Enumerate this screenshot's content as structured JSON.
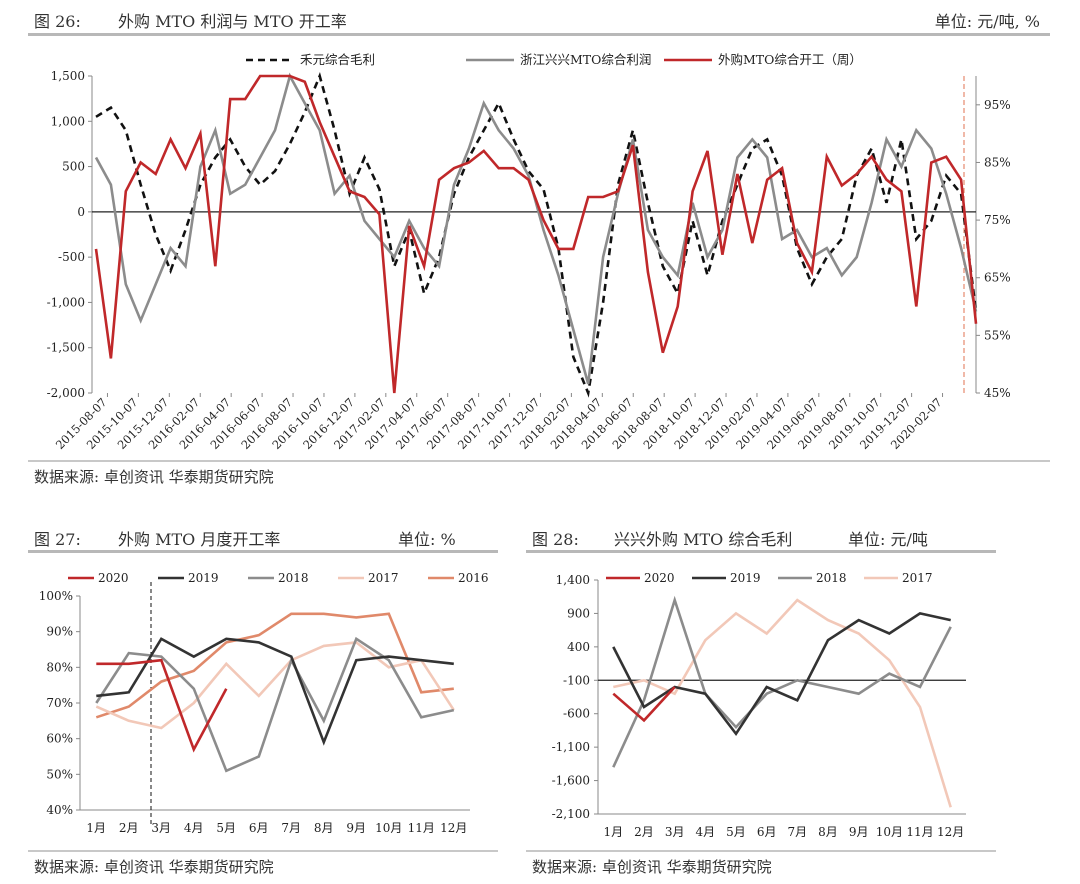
{
  "fig26": {
    "title_num": "图 26:",
    "title": "外购 MTO 利润与 MTO 开工率",
    "unit": "单位: 元/吨, %",
    "source": "数据来源: 卓创资讯 华泰期货研究院"
  },
  "fig27": {
    "title_num": "图 27:",
    "title": "外购 MTO 月度开工率",
    "unit": "单位: %",
    "source": "数据来源: 卓创资讯 华泰期货研究院"
  },
  "fig28": {
    "title_num": "图 28:",
    "title": "兴兴外购 MTO 综合毛利",
    "unit": "单位: 元/吨",
    "source": "数据来源: 卓创资讯 华泰期货研究院"
  },
  "chart_data": [
    {
      "id": "fig26",
      "type": "line",
      "legend": [
        "禾元综合毛利",
        "浙江兴兴MTO综合利润",
        "外购MTO综合开工（周）"
      ],
      "legend_position": "top",
      "y_left": {
        "min": -2000,
        "max": 1500,
        "ticks": [
          "1,500",
          "1,000",
          "500",
          "0",
          "-500",
          "-1,000",
          "-1,500",
          "-2,000"
        ]
      },
      "y_right": {
        "min": 45,
        "max": 100,
        "ticks": [
          "95%",
          "85%",
          "75%",
          "65%",
          "55%",
          "45%"
        ]
      },
      "x_ticks": [
        "2015-08-07",
        "2015-10-07",
        "2015-12-07",
        "2016-02-07",
        "2016-04-07",
        "2016-06-07",
        "2016-08-07",
        "2016-10-07",
        "2016-12-07",
        "2017-02-07",
        "2017-04-07",
        "2017-06-07",
        "2017-08-07",
        "2017-10-07",
        "2017-12-07",
        "2018-02-07",
        "2018-04-07",
        "2018-06-07",
        "2018-08-07",
        "2018-10-07",
        "2018-12-07",
        "2019-02-07",
        "2019-04-07",
        "2019-06-07",
        "2019-08-07",
        "2019-10-07",
        "2019-12-07",
        "2020-02-07"
      ],
      "series": [
        {
          "name": "禾元综合毛利",
          "color": "#111111",
          "dash": true,
          "axis": "left",
          "x": [
            0,
            1,
            2,
            3,
            4,
            5,
            6,
            7,
            8,
            9,
            10,
            11,
            12,
            13,
            14,
            15,
            16,
            17,
            18,
            19,
            20,
            21,
            22,
            23,
            24,
            25,
            26,
            27,
            28,
            29,
            30,
            31,
            32,
            33,
            34,
            35,
            36,
            37,
            38,
            39,
            40,
            41,
            42,
            43,
            44,
            45,
            46,
            47,
            48,
            49,
            50,
            51,
            52,
            53,
            54,
            55,
            56,
            57,
            58,
            59
          ],
          "values": [
            1050,
            1150,
            900,
            300,
            -250,
            -650,
            -200,
            300,
            600,
            800,
            500,
            300,
            450,
            750,
            1100,
            1500,
            900,
            200,
            600,
            250,
            -600,
            -200,
            -900,
            -500,
            200,
            600,
            900,
            1200,
            800,
            450,
            250,
            -400,
            -1600,
            -2000,
            -1000,
            300,
            900,
            100,
            -600,
            -900,
            -100,
            -700,
            -100,
            300,
            700,
            800,
            400,
            -400,
            -800,
            -500,
            -300,
            400,
            700,
            100,
            800,
            -300,
            -100,
            400,
            200,
            -1100
          ]
        },
        {
          "name": "浙江兴兴MTO综合利润",
          "color": "#8c8c8c",
          "dash": false,
          "axis": "left",
          "x": [
            0,
            1,
            2,
            3,
            4,
            5,
            6,
            7,
            8,
            9,
            10,
            11,
            12,
            13,
            14,
            15,
            16,
            17,
            18,
            19,
            20,
            21,
            22,
            23,
            24,
            25,
            26,
            27,
            28,
            29,
            30,
            31,
            32,
            33,
            34,
            35,
            36,
            37,
            38,
            39,
            40,
            41,
            42,
            43,
            44,
            45,
            46,
            47,
            48,
            49,
            50,
            51,
            52,
            53,
            54,
            55,
            56,
            57,
            58,
            59
          ],
          "values": [
            600,
            300,
            -800,
            -1200,
            -800,
            -400,
            -600,
            500,
            900,
            200,
            300,
            600,
            900,
            1500,
            1200,
            900,
            200,
            400,
            -100,
            -300,
            -500,
            -100,
            -400,
            -600,
            300,
            700,
            1200,
            900,
            700,
            400,
            -200,
            -700,
            -1300,
            -1900,
            -500,
            200,
            800,
            -200,
            -500,
            -700,
            100,
            -500,
            -200,
            600,
            800,
            600,
            -300,
            -200,
            -500,
            -400,
            -700,
            -500,
            100,
            800,
            500,
            900,
            700,
            200,
            -400,
            -1100
          ]
        },
        {
          "name": "外购MTO综合开工（周）",
          "color": "#c0282a",
          "dash": false,
          "axis": "right",
          "x": [
            0,
            1,
            2,
            3,
            4,
            5,
            6,
            7,
            8,
            9,
            10,
            11,
            12,
            13,
            14,
            15,
            16,
            17,
            18,
            19,
            20,
            21,
            22,
            23,
            24,
            25,
            26,
            27,
            28,
            29,
            30,
            31,
            32,
            33,
            34,
            35,
            36,
            37,
            38,
            39,
            40,
            41,
            42,
            43,
            44,
            45,
            46,
            47,
            48,
            49,
            50,
            51,
            52,
            53,
            54,
            55,
            56,
            57,
            58,
            59
          ],
          "values": [
            70,
            51,
            80,
            85,
            83,
            89,
            84,
            90,
            67,
            96,
            96,
            100,
            100,
            100,
            99,
            92,
            86,
            80,
            79,
            76,
            45,
            74,
            67,
            82,
            84,
            85,
            87,
            84,
            84,
            82,
            75,
            70,
            70,
            79,
            79,
            80,
            88,
            66,
            52,
            60,
            80,
            87,
            69,
            83,
            71,
            82,
            84,
            71,
            66,
            86,
            81,
            83,
            86,
            82,
            80,
            60,
            85,
            86,
            82,
            57
          ]
        }
      ]
    },
    {
      "id": "fig27",
      "type": "line",
      "y_range": [
        40,
        100
      ],
      "y_ticks": [
        "100%",
        "90%",
        "80%",
        "70%",
        "60%",
        "50%",
        "40%"
      ],
      "x_categories": [
        "1月",
        "2月",
        "3月",
        "4月",
        "5月",
        "6月",
        "7月",
        "8月",
        "9月",
        "10月",
        "11月",
        "12月"
      ],
      "legend_position": "top",
      "marker_line_at": "3月",
      "series": [
        {
          "name": "2020",
          "color": "#c0282a",
          "values": [
            81,
            81,
            82,
            57,
            74,
            null,
            null,
            null,
            null,
            null,
            null,
            null
          ]
        },
        {
          "name": "2019",
          "color": "#333333",
          "values": [
            72,
            73,
            88,
            83,
            88,
            87,
            83,
            59,
            82,
            83,
            82,
            81
          ]
        },
        {
          "name": "2018",
          "color": "#8c8c8c",
          "values": [
            70,
            84,
            83,
            74,
            51,
            55,
            82,
            65,
            88,
            82,
            66,
            68
          ]
        },
        {
          "name": "2017",
          "color": "#f2c8b8",
          "values": [
            69,
            65,
            63,
            70,
            81,
            72,
            82,
            86,
            87,
            80,
            82,
            68
          ]
        },
        {
          "name": "2016",
          "color": "#e0896a",
          "values": [
            66,
            69,
            76,
            79,
            87,
            89,
            95,
            95,
            94,
            95,
            73,
            74
          ]
        }
      ]
    },
    {
      "id": "fig28",
      "type": "line",
      "y_range": [
        -2100,
        1400
      ],
      "y_ticks": [
        "1,400",
        "900",
        "400",
        "-100",
        "-600",
        "-1,100",
        "-1,600",
        "-2,100"
      ],
      "x_categories": [
        "1月",
        "2月",
        "3月",
        "4月",
        "5月",
        "6月",
        "7月",
        "8月",
        "9月",
        "10月",
        "11月",
        "12月"
      ],
      "legend_position": "top",
      "zero_line_at": -100,
      "series": [
        {
          "name": "2020",
          "color": "#c0282a",
          "values": [
            -300,
            -700,
            -200,
            null,
            null,
            null,
            null,
            null,
            null,
            null,
            null,
            null
          ]
        },
        {
          "name": "2019",
          "color": "#333333",
          "values": [
            400,
            -500,
            -200,
            -300,
            -900,
            -200,
            -400,
            500,
            800,
            600,
            900,
            800
          ]
        },
        {
          "name": "2018",
          "color": "#8c8c8c",
          "values": [
            -1400,
            -400,
            1100,
            -300,
            -800,
            -300,
            -100,
            -200,
            -300,
            0,
            -200,
            700
          ]
        },
        {
          "name": "2017",
          "color": "#f2c8b8",
          "values": [
            -200,
            -100,
            -300,
            500,
            900,
            600,
            1100,
            800,
            600,
            200,
            -500,
            -2000
          ]
        }
      ]
    }
  ]
}
